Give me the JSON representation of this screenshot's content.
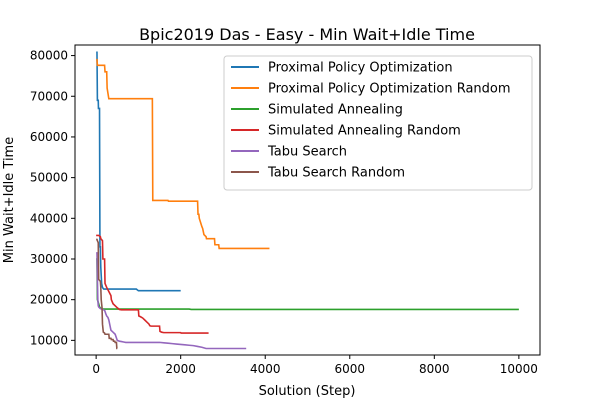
{
  "chart_data": {
    "type": "line",
    "title": "Bpic2019 Das - Easy - Min Wait+Idle Time",
    "xlabel": "Solution (Step)",
    "ylabel": "Min Wait+Idle Time",
    "xlim": [
      -500,
      10500
    ],
    "ylim": [
      6400,
      82600
    ],
    "xticks": [
      0,
      2000,
      4000,
      6000,
      8000,
      10000
    ],
    "yticks": [
      10000,
      20000,
      30000,
      40000,
      50000,
      60000,
      70000,
      80000
    ],
    "grid": false,
    "legend": "top-right",
    "series": [
      {
        "name": "Proximal Policy Optimization",
        "color": "#1f77b4",
        "x": [
          0,
          20,
          30,
          50,
          55,
          80,
          90,
          100,
          110,
          120,
          130,
          150,
          180,
          950,
          1000,
          2000
        ],
        "y": [
          80800,
          80800,
          69000,
          69000,
          67000,
          67000,
          33000,
          33000,
          28000,
          26000,
          24000,
          23000,
          22600,
          22600,
          22200,
          22200
        ]
      },
      {
        "name": "Proximal Policy Optimization Random",
        "color": "#ff7f0e",
        "x": [
          0,
          20,
          30,
          200,
          210,
          250,
          260,
          300,
          1330,
          1340,
          1700,
          1710,
          2400,
          2410,
          2430,
          2440,
          2470,
          2500,
          2520,
          2550,
          2600,
          2610,
          2800,
          2810,
          2900,
          2910,
          4100
        ],
        "y": [
          79000,
          79000,
          77600,
          77600,
          76000,
          76000,
          72000,
          69400,
          69400,
          44400,
          44400,
          44200,
          44200,
          41000,
          41000,
          40000,
          39000,
          38000,
          37500,
          36000,
          35500,
          35000,
          35000,
          33500,
          33500,
          32600,
          32600
        ]
      },
      {
        "name": "Simulated Annealing",
        "color": "#2ca02c",
        "x": [
          0,
          20,
          30,
          60,
          80,
          100,
          150,
          2200,
          2250,
          10000
        ],
        "y": [
          30000,
          30000,
          20000,
          19000,
          18200,
          18000,
          17700,
          17700,
          17600,
          17600
        ]
      },
      {
        "name": "Simulated Annealing Random",
        "color": "#d62728",
        "x": [
          0,
          60,
          100,
          110,
          150,
          160,
          200,
          210,
          250,
          300,
          350,
          360,
          400,
          500,
          550,
          600,
          650,
          1000,
          1010,
          1050,
          1100,
          1150,
          1200,
          1250,
          1270,
          1300,
          1500,
          1510,
          1550,
          1600,
          2000,
          2010,
          2660
        ],
        "y": [
          35800,
          35800,
          35500,
          35000,
          34500,
          30000,
          30000,
          24000,
          23000,
          22000,
          21000,
          20000,
          19000,
          18000,
          17600,
          17500,
          17500,
          17500,
          16000,
          15800,
          15500,
          15000,
          14500,
          14000,
          13600,
          13500,
          13500,
          12200,
          12000,
          11900,
          11900,
          11800,
          11800
        ]
      },
      {
        "name": "Tabu Search",
        "color": "#9467bd",
        "x": [
          0,
          20,
          30,
          40,
          50,
          60,
          80,
          100,
          150,
          200,
          230,
          250,
          280,
          300,
          330,
          350,
          400,
          450,
          500,
          550,
          600,
          650,
          700,
          800,
          1500,
          1600,
          1700,
          1800,
          1900,
          2000,
          2100,
          2200,
          2300,
          2400,
          2500,
          2600,
          3550
        ],
        "y": [
          31500,
          31500,
          25000,
          20000,
          18500,
          18200,
          18000,
          17800,
          17600,
          17400,
          16500,
          16000,
          15600,
          15000,
          13500,
          12500,
          12000,
          11500,
          10000,
          9800,
          9700,
          9600,
          9500,
          9500,
          9500,
          9400,
          9300,
          9200,
          9100,
          9000,
          8900,
          8800,
          8700,
          8500,
          8300,
          8000,
          8000
        ]
      },
      {
        "name": "Tabu Search Random",
        "color": "#8c564b",
        "x": [
          0,
          20,
          30,
          50,
          60,
          100,
          110,
          120,
          140,
          150,
          170,
          200,
          210,
          300,
          310,
          350,
          360,
          400,
          410,
          440,
          450,
          480,
          490,
          500
        ],
        "y": [
          34800,
          34800,
          34500,
          34000,
          25000,
          24500,
          23000,
          20000,
          18000,
          14000,
          12000,
          11800,
          11500,
          11500,
          10500,
          10500,
          10200,
          10200,
          9800,
          9800,
          9500,
          9500,
          8000,
          8000
        ]
      }
    ]
  }
}
